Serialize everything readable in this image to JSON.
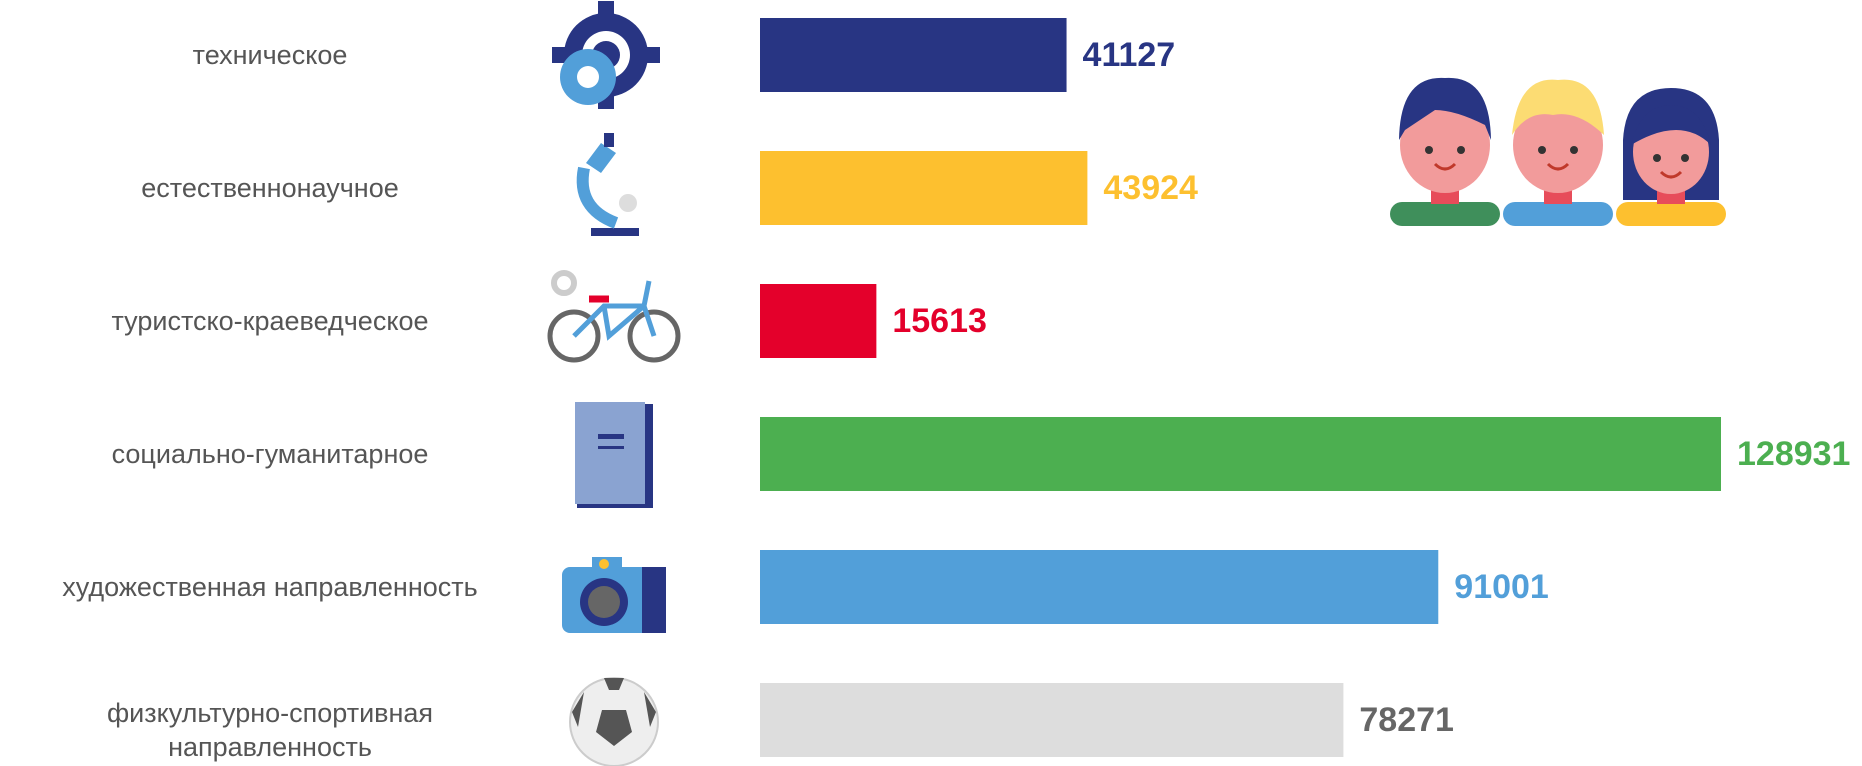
{
  "chart_data": {
    "type": "bar",
    "orientation": "horizontal",
    "categories": [
      "техническое",
      "естественнонаучное",
      "туристско-краеведческое",
      "социально-гуманитарное",
      "художественная направленность",
      "физкультурно-спортивная направленность"
    ],
    "values": [
      41127,
      43924,
      15613,
      128931,
      91001,
      78271
    ],
    "colors": [
      "#283583",
      "#fdc02f",
      "#e4002b",
      "#4caf50",
      "#529fd9",
      "#dddddd"
    ],
    "label_colors": [
      "#283583",
      "#fdc02f",
      "#e4002b",
      "#4caf50",
      "#529fd9",
      "#666666"
    ]
  }
}
